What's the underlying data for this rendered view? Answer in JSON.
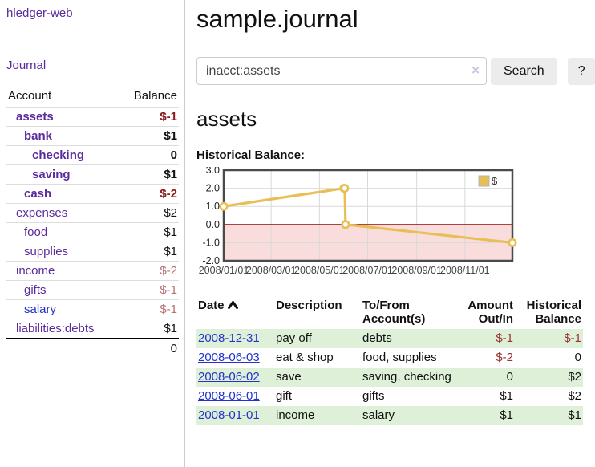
{
  "app": {
    "title": "hledger-web"
  },
  "colors": {
    "link_purple": "#5a2b9d",
    "link_blue": "#2233cc",
    "negative_strong": "#8b1a1a",
    "negative_soft": "#b87272",
    "register_negative": "#993333",
    "row_stripe_green": "#dff0d8",
    "chart_line_gold": "#e8bf55",
    "chart_negative_region": "#f9dcdc",
    "chart_zero_line": "#990000"
  },
  "sidebar": {
    "journal_label": "Journal",
    "accounts": {
      "header_account": "Account",
      "header_balance": "Balance",
      "rows": [
        {
          "name": "assets",
          "balance": "$-1",
          "indent": 1,
          "bold": true,
          "balance_style": "neg-strong",
          "name_style": "purple"
        },
        {
          "name": "bank",
          "balance": "$1",
          "indent": 2,
          "bold": true,
          "balance_style": "pos",
          "name_style": "purple"
        },
        {
          "name": "checking",
          "balance": "0",
          "indent": 3,
          "bold": true,
          "balance_style": "pos",
          "name_style": "purple"
        },
        {
          "name": "saving",
          "balance": "$1",
          "indent": 3,
          "bold": true,
          "balance_style": "pos",
          "name_style": "purple"
        },
        {
          "name": "cash",
          "balance": "$-2",
          "indent": 2,
          "bold": true,
          "balance_style": "neg-strong",
          "name_style": "purple"
        },
        {
          "name": "expenses",
          "balance": "$2",
          "indent": 1,
          "bold": false,
          "balance_style": "pos",
          "name_style": "purple"
        },
        {
          "name": "food",
          "balance": "$1",
          "indent": 2,
          "bold": false,
          "balance_style": "pos",
          "name_style": "purple"
        },
        {
          "name": "supplies",
          "balance": "$1",
          "indent": 2,
          "bold": false,
          "balance_style": "pos",
          "name_style": "purple"
        },
        {
          "name": "income",
          "balance": "$-2",
          "indent": 1,
          "bold": false,
          "balance_style": "neg-soft",
          "name_style": "purple"
        },
        {
          "name": "gifts",
          "balance": "$-1",
          "indent": 2,
          "bold": false,
          "balance_style": "neg-soft",
          "name_style": "purple"
        },
        {
          "name": "salary",
          "balance": "$-1",
          "indent": 2,
          "bold": false,
          "balance_style": "neg-soft",
          "name_style": "blue"
        },
        {
          "name": "liabilities:debts",
          "balance": "$1",
          "indent": 1,
          "bold": false,
          "balance_style": "pos",
          "name_style": "purple"
        }
      ],
      "total": "0"
    }
  },
  "main": {
    "title": "sample.journal",
    "search": {
      "value": "inacct:assets",
      "clear_icon": "×",
      "button_label": "Search",
      "help_label": "?"
    },
    "account_heading": "assets",
    "chart_label": "Historical Balance:"
  },
  "chart_data": {
    "type": "line",
    "title": "Historical Balance:",
    "series": [
      {
        "name": "$",
        "color": "#e8bf55",
        "points": [
          [
            "2008-01-01",
            1
          ],
          [
            "2008-06-01",
            2
          ],
          [
            "2008-06-02",
            2
          ],
          [
            "2008-06-03",
            0
          ],
          [
            "2008-12-31",
            -1
          ]
        ]
      }
    ],
    "xrange": [
      "2008-01-01",
      "2008-12-31"
    ],
    "ylim": [
      -2,
      3
    ],
    "yticks": [
      3,
      2,
      1,
      0,
      -1,
      -2
    ],
    "ytick_labels": [
      "3.0",
      "2.0",
      "1.0",
      "0.0",
      "-1.0",
      "-2.0"
    ],
    "xticks": [
      {
        "label": "2008/01/01",
        "date": "2008-01-01"
      },
      {
        "label": "2008/03/01",
        "date": "2008-03-01"
      },
      {
        "label": "2008/05/01",
        "date": "2008-05-01"
      },
      {
        "label": "2008/07/01",
        "date": "2008-07-01"
      },
      {
        "label": "2008/09/01",
        "date": "2008-09-01"
      },
      {
        "label": "2008/11/01",
        "date": "2008-11-01"
      }
    ],
    "grid": true,
    "legend": {
      "position": "top-right",
      "entries": [
        "$"
      ]
    },
    "negative_region_shaded": true
  },
  "register": {
    "headers": [
      {
        "label": "Date",
        "align": "left",
        "sorted": "asc",
        "sort_icon": "chevron-up"
      },
      {
        "label": "Description",
        "align": "left"
      },
      {
        "label": "To/From Account(s)",
        "align": "left"
      },
      {
        "label": "Amount Out/In",
        "align": "right"
      },
      {
        "label": "Historical Balance",
        "align": "right"
      }
    ],
    "rows": [
      {
        "date": "2008-12-31",
        "description": "pay off",
        "accounts": "debts",
        "amount": "$-1",
        "amount_negative": true,
        "balance": "$-1",
        "balance_negative": true
      },
      {
        "date": "2008-06-03",
        "description": "eat & shop",
        "accounts": "food, supplies",
        "amount": "$-2",
        "amount_negative": true,
        "balance": "0",
        "balance_negative": false
      },
      {
        "date": "2008-06-02",
        "description": "save",
        "accounts": "saving, checking",
        "amount": "0",
        "amount_negative": false,
        "balance": "$2",
        "balance_negative": false
      },
      {
        "date": "2008-06-01",
        "description": "gift",
        "accounts": "gifts",
        "amount": "$1",
        "amount_negative": false,
        "balance": "$2",
        "balance_negative": false
      },
      {
        "date": "2008-01-01",
        "description": "income",
        "accounts": "salary",
        "amount": "$1",
        "amount_negative": false,
        "balance": "$1",
        "balance_negative": false
      }
    ]
  }
}
